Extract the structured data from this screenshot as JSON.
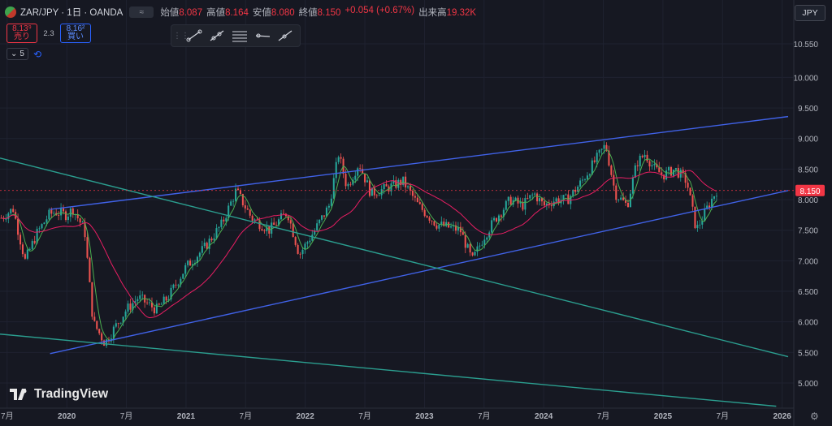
{
  "header": {
    "symbol": "ZAR/JPY · 1日 · OANDA",
    "badge": "≈",
    "open_label": "始値",
    "open": "8.087",
    "high_label": "高値",
    "high": "8.164",
    "low_label": "安値",
    "low": "8.080",
    "close_label": "終値",
    "close": "8.150",
    "change": "+0.054 (+0.67%)",
    "volume_label": "出来高",
    "volume": "19.32K"
  },
  "trade": {
    "sell_price": "8.13⁹",
    "sell_label": "売り",
    "spread": "2.3",
    "buy_price": "8.16²",
    "buy_label": "買い"
  },
  "indicators": {
    "count": "5"
  },
  "currency_button": "JPY",
  "logo_text": "TradingView",
  "colors": {
    "background": "#161822",
    "up_candle": "#26a69a",
    "down_candle": "#ef5350",
    "ma_fast": "#4caf50",
    "ma_slow": "#e91e63",
    "channel": "#4062e8",
    "downtrend": "#2b9e8f",
    "price_label": "#f23645"
  },
  "chart_data": {
    "type": "candlestick",
    "x_ticks": [
      "7月",
      "2020",
      "7月",
      "2021",
      "7月",
      "2022",
      "7月",
      "2023",
      "7月",
      "2024",
      "7月",
      "2025",
      "7月",
      "2026"
    ],
    "x_range": [
      2019.44,
      2026.05
    ],
    "y_ticks": [
      "10.550",
      "10.000",
      "9.500",
      "9.000",
      "8.500",
      "8.000",
      "7.500",
      "7.000",
      "6.500",
      "6.000",
      "5.500",
      "5.000"
    ],
    "y_range": [
      4.7,
      10.85
    ],
    "last_price": 8.15,
    "last_price_label": "8.150",
    "price_anchors": [
      [
        2019.45,
        7.7
      ],
      [
        2019.55,
        7.85
      ],
      [
        2019.65,
        7.0
      ],
      [
        2019.75,
        7.45
      ],
      [
        2019.85,
        7.75
      ],
      [
        2019.9,
        7.8
      ],
      [
        2020.0,
        7.75
      ],
      [
        2020.05,
        7.85
      ],
      [
        2020.15,
        7.5
      ],
      [
        2020.22,
        6.0
      ],
      [
        2020.32,
        5.65
      ],
      [
        2020.4,
        5.9
      ],
      [
        2020.5,
        6.2
      ],
      [
        2020.6,
        6.4
      ],
      [
        2020.75,
        6.2
      ],
      [
        2020.85,
        6.4
      ],
      [
        2021.0,
        6.9
      ],
      [
        2021.15,
        7.2
      ],
      [
        2021.3,
        7.6
      ],
      [
        2021.42,
        8.15
      ],
      [
        2021.55,
        7.7
      ],
      [
        2021.7,
        7.5
      ],
      [
        2021.85,
        7.8
      ],
      [
        2021.95,
        7.1
      ],
      [
        2022.08,
        7.5
      ],
      [
        2022.2,
        7.9
      ],
      [
        2022.28,
        8.75
      ],
      [
        2022.35,
        8.2
      ],
      [
        2022.45,
        8.6
      ],
      [
        2022.55,
        8.1
      ],
      [
        2022.7,
        8.2
      ],
      [
        2022.82,
        8.3
      ],
      [
        2022.95,
        7.9
      ],
      [
        2023.1,
        7.6
      ],
      [
        2023.3,
        7.5
      ],
      [
        2023.4,
        7.0
      ],
      [
        2023.5,
        7.4
      ],
      [
        2023.6,
        7.7
      ],
      [
        2023.72,
        8.0
      ],
      [
        2023.82,
        7.9
      ],
      [
        2023.92,
        8.1
      ],
      [
        2024.0,
        7.9
      ],
      [
        2024.1,
        8.0
      ],
      [
        2024.2,
        8.0
      ],
      [
        2024.32,
        8.3
      ],
      [
        2024.42,
        8.6
      ],
      [
        2024.52,
        8.9
      ],
      [
        2024.6,
        8.1
      ],
      [
        2024.7,
        7.9
      ],
      [
        2024.78,
        8.6
      ],
      [
        2024.85,
        8.75
      ],
      [
        2024.93,
        8.5
      ],
      [
        2025.0,
        8.4
      ],
      [
        2025.1,
        8.5
      ],
      [
        2025.2,
        8.3
      ],
      [
        2025.28,
        7.5
      ],
      [
        2025.33,
        7.7
      ],
      [
        2025.38,
        7.9
      ],
      [
        2025.45,
        8.15
      ]
    ],
    "channel_upper": [
      [
        2019.86,
        7.84
      ],
      [
        2026.05,
        9.36
      ]
    ],
    "channel_lower": [
      [
        2019.86,
        5.48
      ],
      [
        2026.05,
        8.15
      ]
    ],
    "downtrend_1": [
      [
        2019.44,
        8.68
      ],
      [
        2026.05,
        5.43
      ]
    ],
    "downtrend_2": [
      [
        2019.44,
        5.8
      ],
      [
        2025.95,
        4.62
      ]
    ],
    "ma_periods": [
      5,
      25
    ]
  }
}
